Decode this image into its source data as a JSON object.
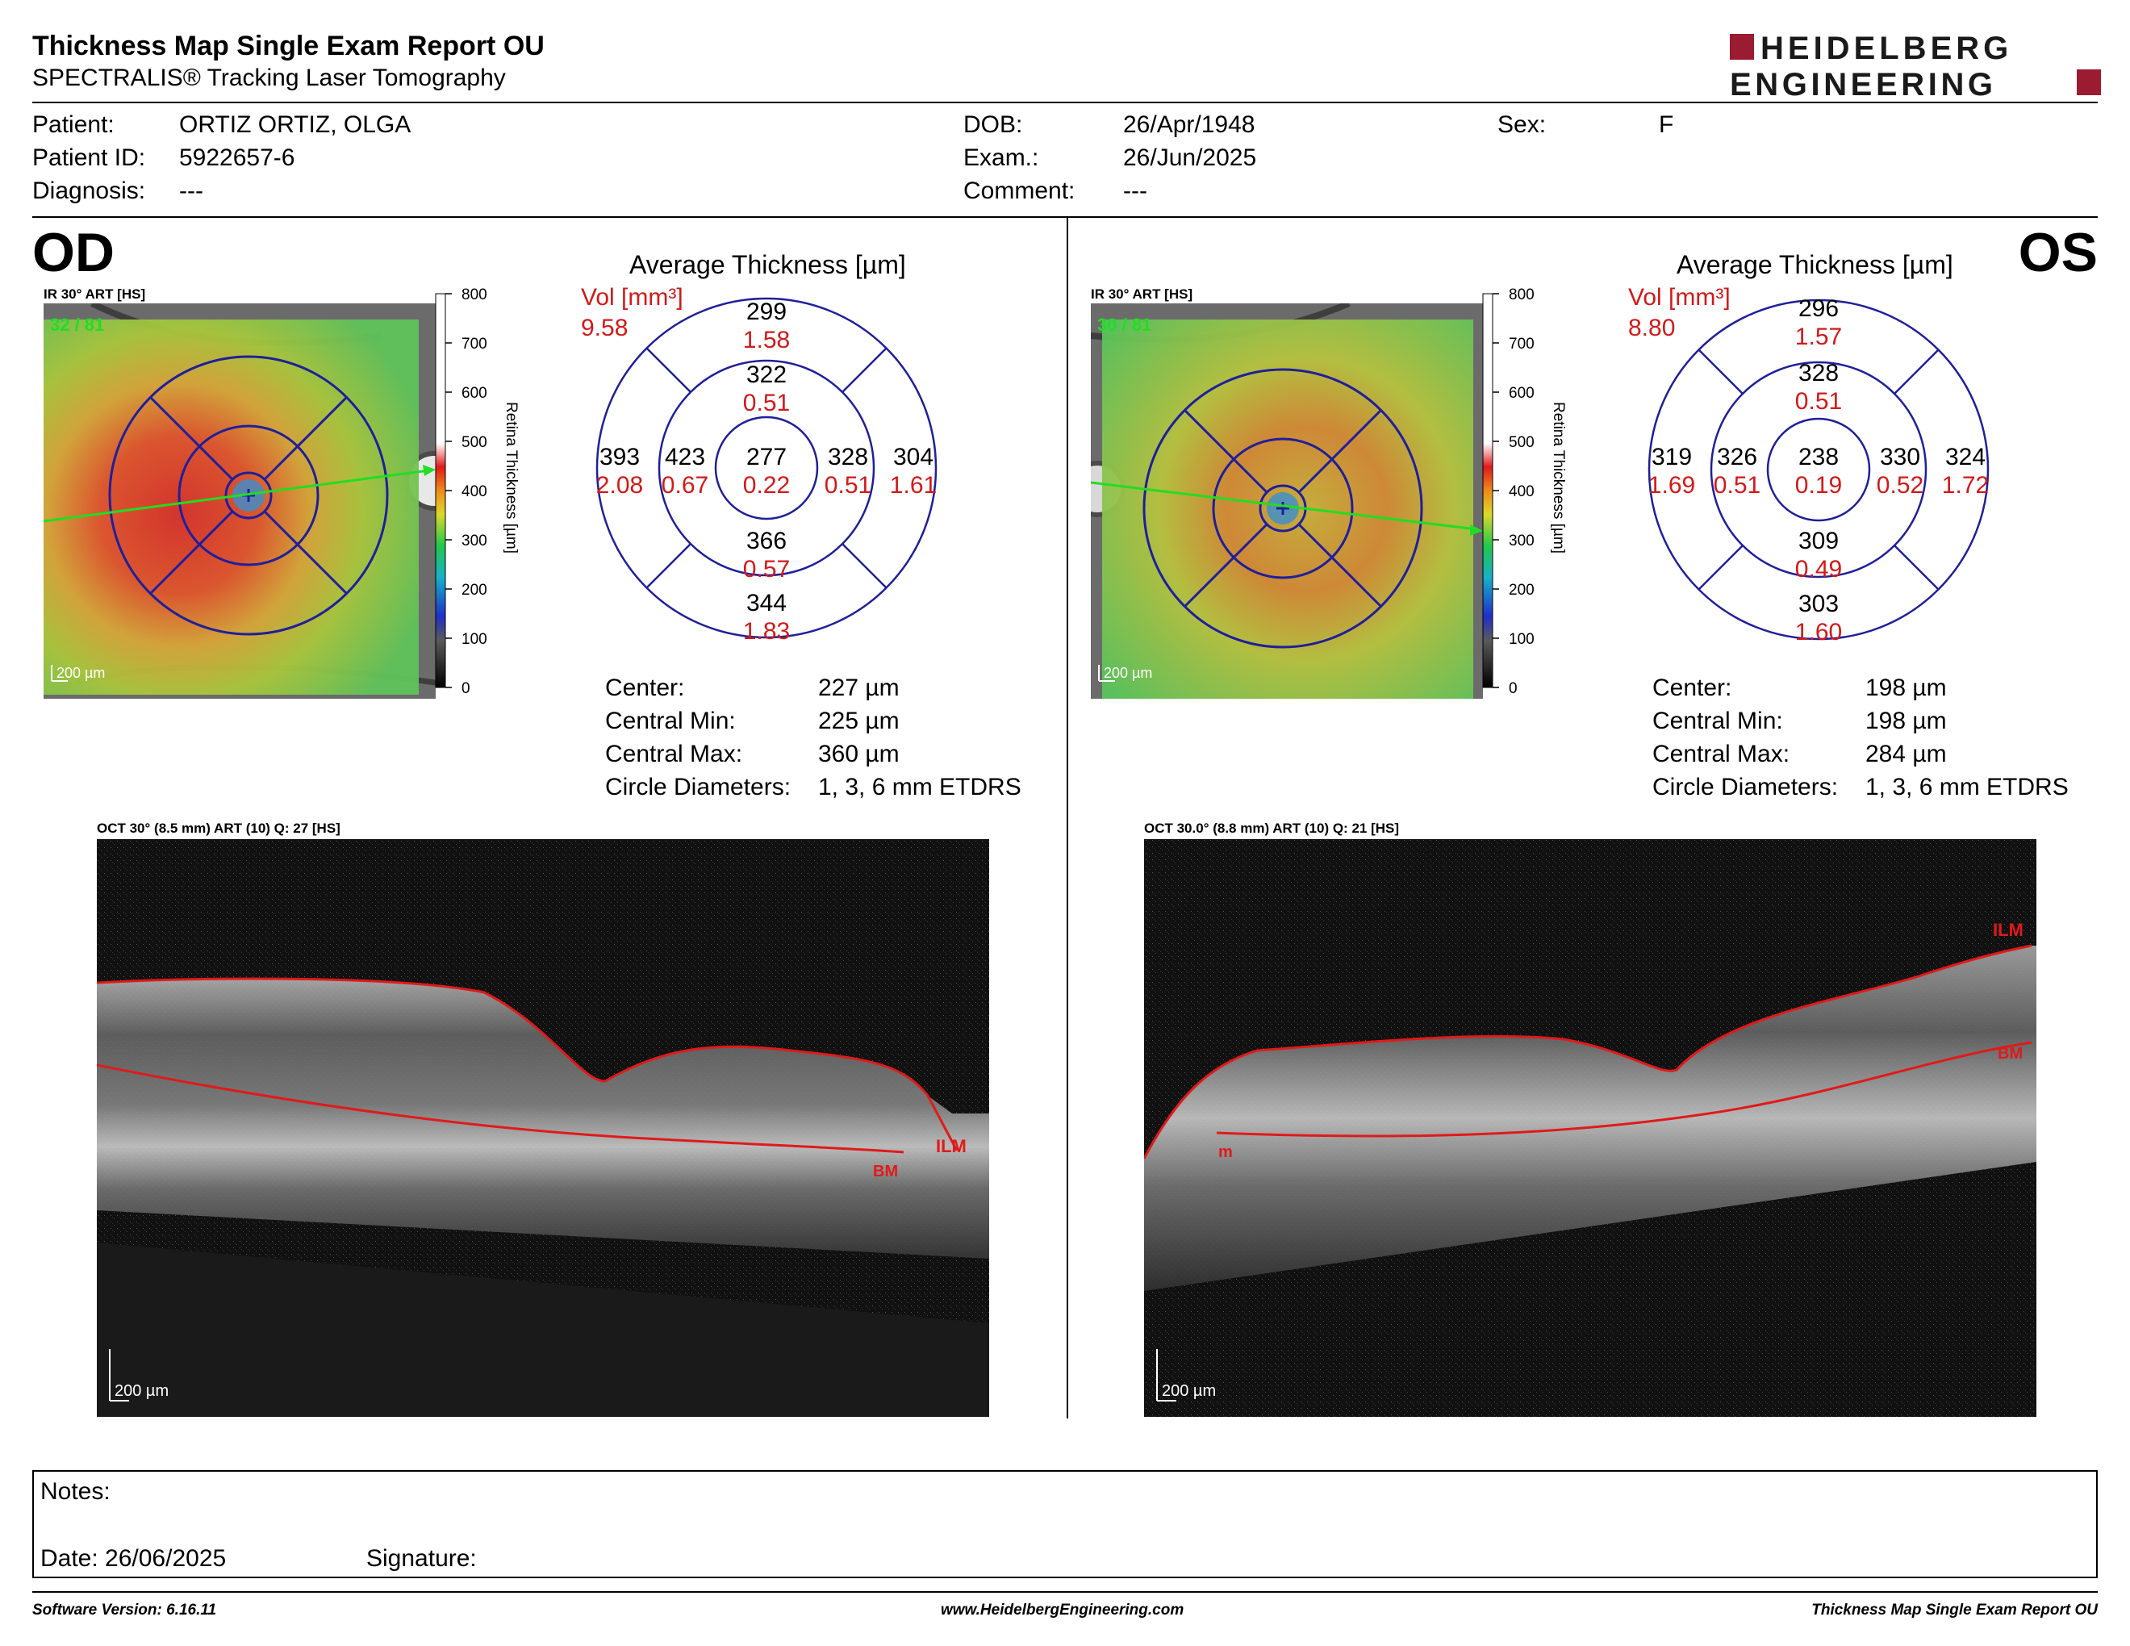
{
  "report": {
    "title": "Thickness Map Single Exam Report OU",
    "subtitle": "SPECTRALIS® Tracking Laser Tomography"
  },
  "logo": {
    "line1": "HEIDELBERG",
    "line2": "ENGINEERING",
    "accent": "#9b1b30"
  },
  "patient": {
    "name_label": "Patient:",
    "name": "ORTIZ ORTIZ, OLGA",
    "id_label": "Patient ID:",
    "id": "5922657-6",
    "diagnosis_label": "Diagnosis:",
    "diagnosis": "---",
    "dob_label": "DOB:",
    "dob": "26/Apr/1948",
    "exam_label": "Exam.:",
    "exam": "26/Jun/2025",
    "comment_label": "Comment:",
    "comment": "---",
    "sex_label": "Sex:",
    "sex": "F"
  },
  "scale": {
    "ticks": [
      "800",
      "700",
      "600",
      "500",
      "400",
      "300",
      "200",
      "100",
      "0"
    ],
    "label": "Retina Thickness [µm]"
  },
  "od": {
    "eye": "OD",
    "fundus_label": "IR 30° ART [HS]",
    "fundus_count": "32 / 81",
    "fundus_scalebar": "200 µm",
    "avg_title": "Average Thickness [µm]",
    "vol_label": "Vol [mm³]",
    "vol_total": "9.58",
    "sectors": {
      "outer_sup": {
        "t": "299",
        "v": "1.58"
      },
      "inner_sup": {
        "t": "322",
        "v": "0.51"
      },
      "outer_left": {
        "t": "393",
        "v": "2.08"
      },
      "inner_left": {
        "t": "423",
        "v": "0.67"
      },
      "center": {
        "t": "277",
        "v": "0.22"
      },
      "inner_right": {
        "t": "328",
        "v": "0.51"
      },
      "outer_right": {
        "t": "304",
        "v": "1.61"
      },
      "inner_inf": {
        "t": "366",
        "v": "0.57"
      },
      "outer_inf": {
        "t": "344",
        "v": "1.83"
      }
    },
    "stats": [
      {
        "k": "Center:",
        "v": "227 µm"
      },
      {
        "k": "Central Min:",
        "v": "225 µm"
      },
      {
        "k": "Central Max:",
        "v": "360 µm"
      },
      {
        "k": "Circle Diameters:",
        "v": "1, 3, 6 mm ETDRS"
      }
    ],
    "oct_label": "OCT 30° (8.5 mm) ART (10) Q: 27 [HS]",
    "oct_scalebar": "200 µm",
    "ilm": "ILM",
    "bm": "BM"
  },
  "os": {
    "eye": "OS",
    "fundus_label": "IR 30° ART [HS]",
    "fundus_count": "30 / 81",
    "fundus_scalebar": "200 µm",
    "avg_title": "Average Thickness [µm]",
    "vol_label": "Vol [mm³]",
    "vol_total": "8.80",
    "sectors": {
      "outer_sup": {
        "t": "296",
        "v": "1.57"
      },
      "inner_sup": {
        "t": "328",
        "v": "0.51"
      },
      "outer_left": {
        "t": "319",
        "v": "1.69"
      },
      "inner_left": {
        "t": "326",
        "v": "0.51"
      },
      "center": {
        "t": "238",
        "v": "0.19"
      },
      "inner_right": {
        "t": "330",
        "v": "0.52"
      },
      "outer_right": {
        "t": "324",
        "v": "1.72"
      },
      "inner_inf": {
        "t": "309",
        "v": "0.49"
      },
      "outer_inf": {
        "t": "303",
        "v": "1.60"
      }
    },
    "stats": [
      {
        "k": "Center:",
        "v": "198 µm"
      },
      {
        "k": "Central Min:",
        "v": "198 µm"
      },
      {
        "k": "Central Max:",
        "v": "284 µm"
      },
      {
        "k": "Circle Diameters:",
        "v": "1, 3, 6 mm ETDRS"
      }
    ],
    "oct_label": "OCT 30.0° (8.8 mm) ART (10) Q: 21 [HS]",
    "oct_scalebar": "200 µm",
    "ilm": "ILM",
    "bm": "BM",
    "extra_label": "m"
  },
  "notes": {
    "notes_label": "Notes:",
    "date_label": "Date: 26/06/2025",
    "signature_label": "Signature:"
  },
  "footer": {
    "software": "Software Version: 6.16.11",
    "website": "www.HeidelbergEngineering.com",
    "report_name": "Thickness Map Single Exam Report OU"
  },
  "colors": {
    "grid": "#1f1f9a",
    "red_value": "#d11a1a",
    "segmentation": "#e01a1a",
    "marker": "#22dd22"
  }
}
